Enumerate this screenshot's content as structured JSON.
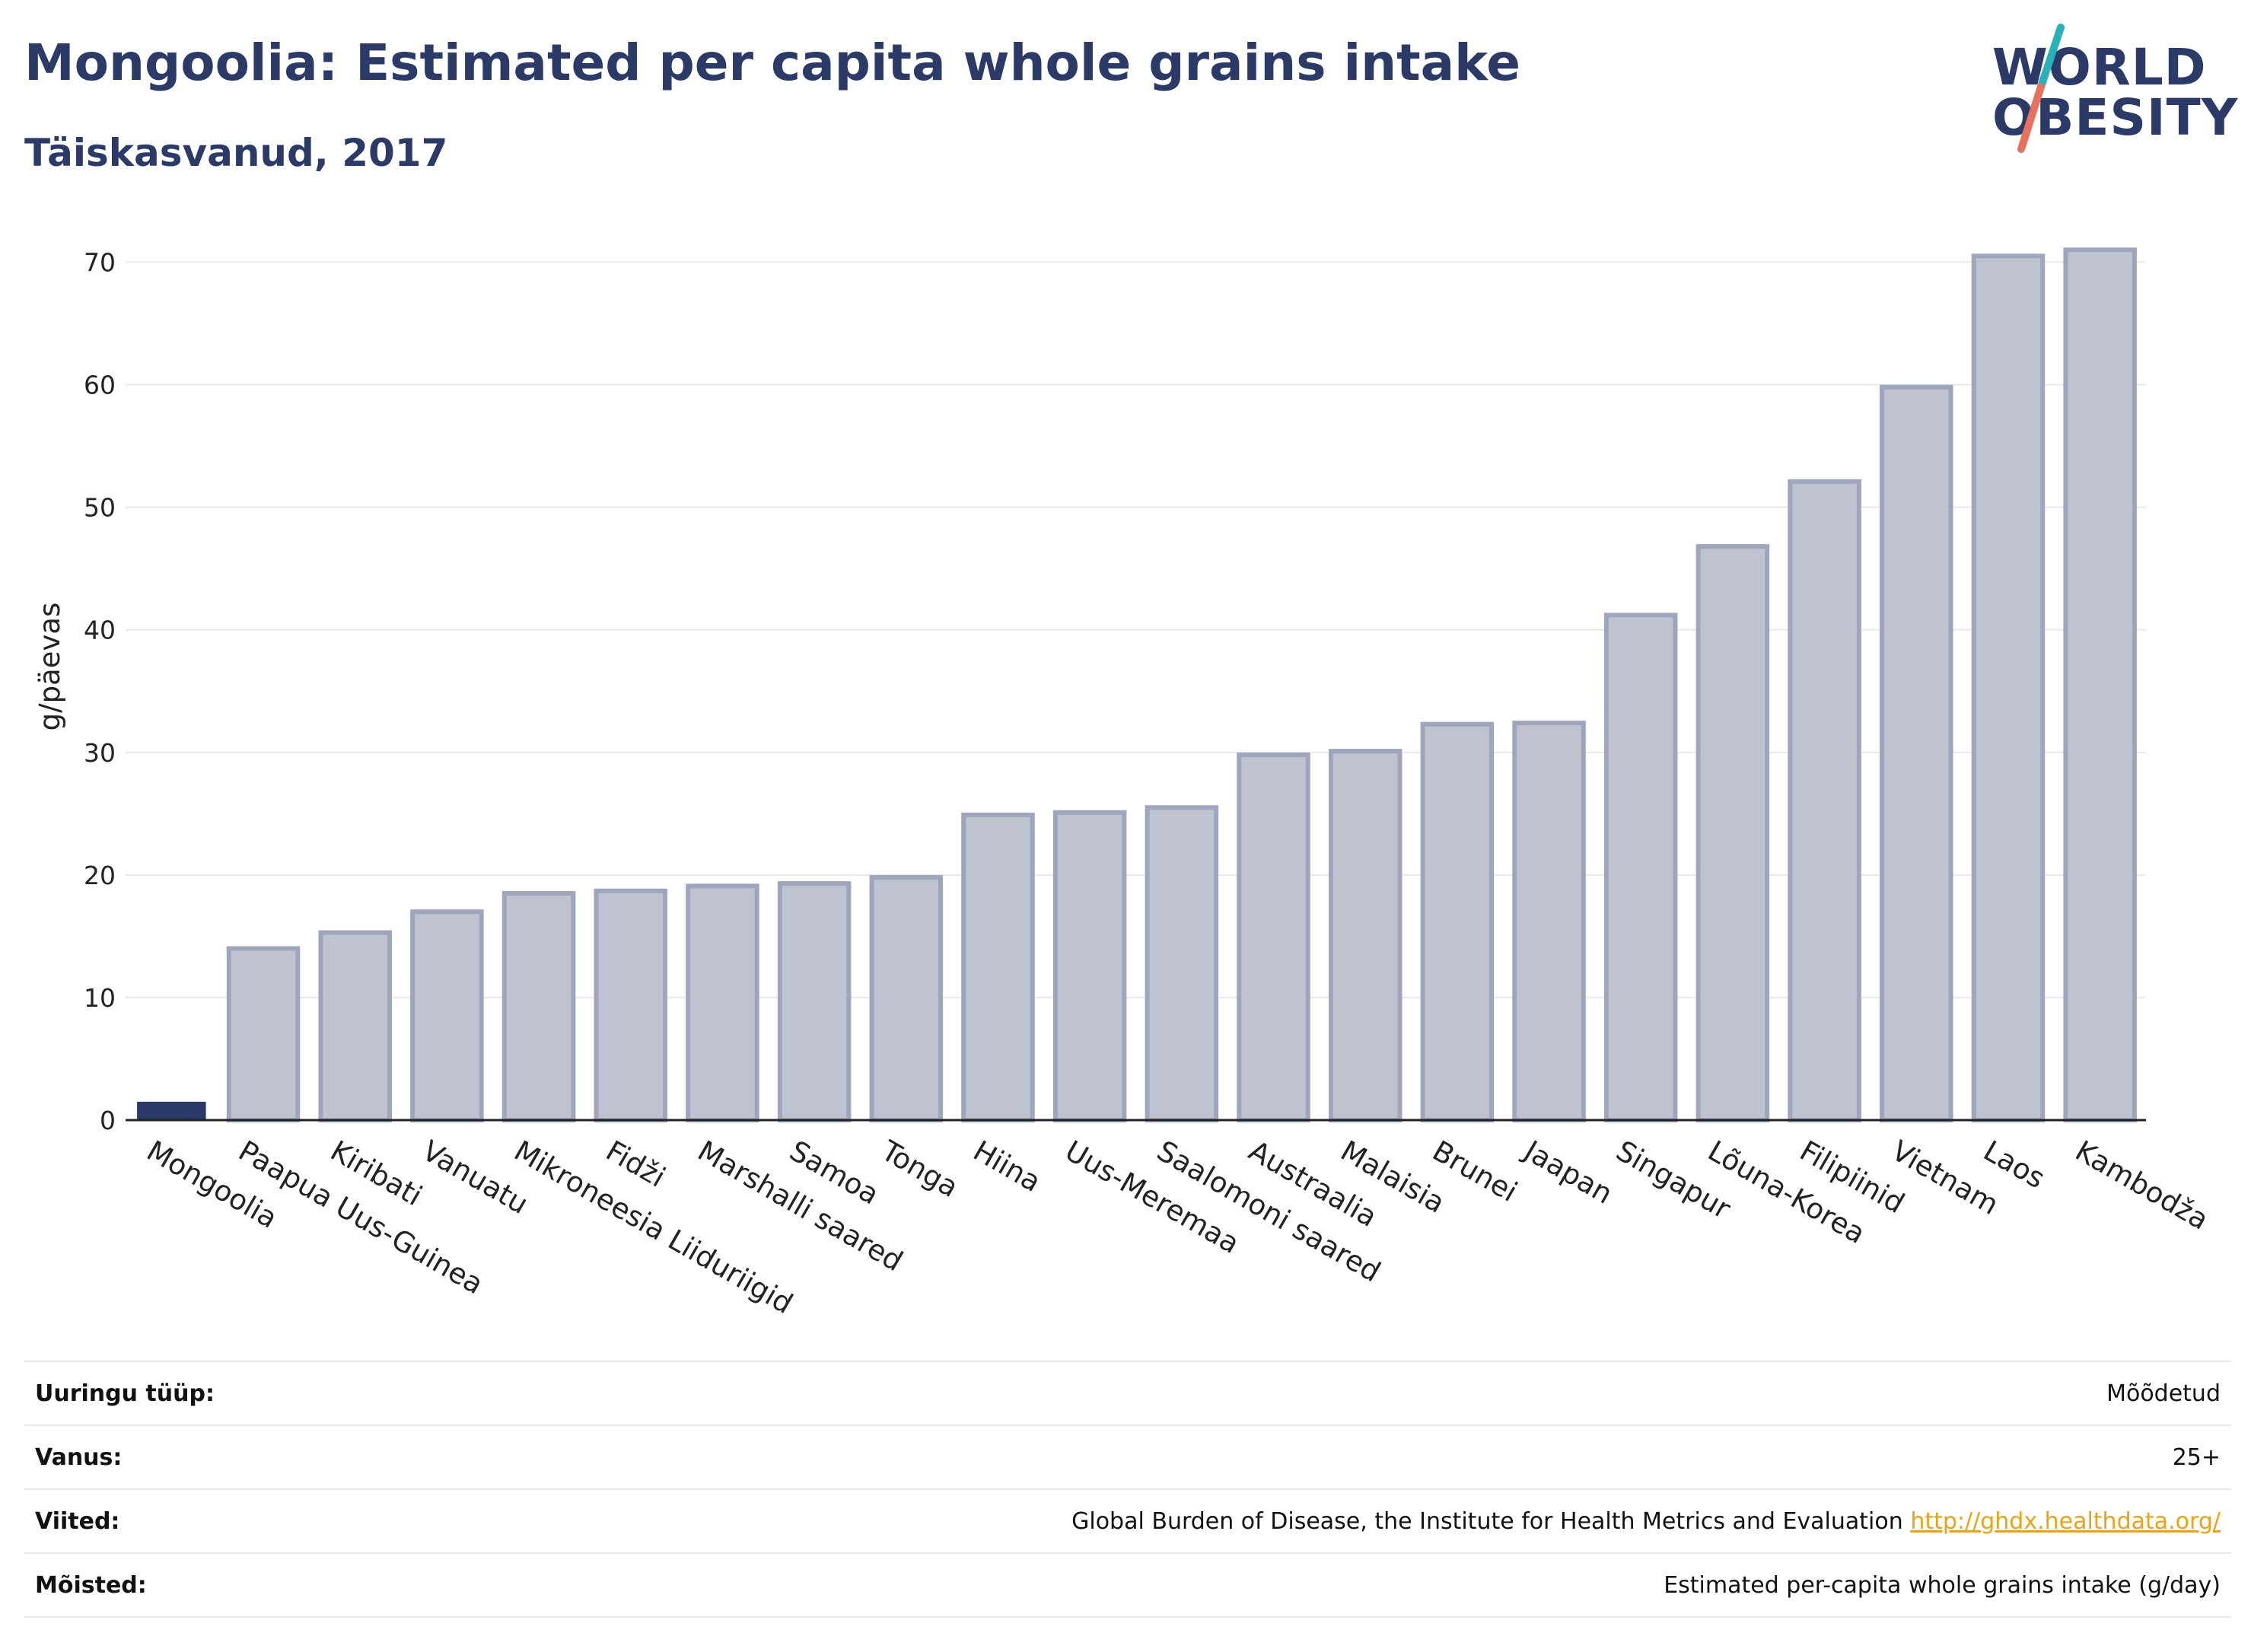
{
  "header": {
    "title": "Mongoolia: Estimated per capita whole grains intake",
    "subtitle": "Täiskasvanud, 2017"
  },
  "logo": {
    "line1": "WORLD",
    "line2": "OBESITY",
    "colors": {
      "text": "#2b3a67",
      "stroke_top": "#2ab0b8",
      "stroke_bottom": "#e8705f"
    }
  },
  "chart_data": {
    "type": "bar",
    "categories": [
      "Mongoolia",
      "Paapua Uus-Guinea",
      "Kiribati",
      "Vanuatu",
      "Mikroneesia Liiduriigid",
      "Fidži",
      "Marshalli saared",
      "Samoa",
      "Tonga",
      "Hiina",
      "Uus-Meremaa",
      "Saalomoni saared",
      "Austraalia",
      "Malaisia",
      "Brunei",
      "Jaapan",
      "Singapur",
      "Lõuna-Korea",
      "Filipiinid",
      "Vietnam",
      "Laos",
      "Kambodža"
    ],
    "values": [
      1.5,
      14.0,
      15.3,
      17.0,
      18.5,
      18.7,
      19.1,
      19.3,
      19.8,
      24.9,
      25.1,
      25.5,
      29.8,
      30.1,
      32.3,
      32.4,
      41.2,
      46.8,
      52.1,
      59.8,
      70.5,
      71.0
    ],
    "highlight_index": 0,
    "xlabel": "",
    "ylabel": "g/päevas",
    "ylim": [
      0,
      74
    ],
    "yticks": [
      0,
      10,
      20,
      30,
      40,
      50,
      60,
      70
    ],
    "grid": true,
    "colors": {
      "highlight": "#2b3a67",
      "bar_fill": "#bfc3d0",
      "bar_stroke": "#9fa5bc",
      "grid": "#e6e8ec",
      "axis": "#222222"
    }
  },
  "info": [
    {
      "label": "Uuringu tüüp:",
      "value": "Mõõdetud"
    },
    {
      "label": "Vanus:",
      "value": "25+"
    },
    {
      "label": "Viited:",
      "value": "Global Burden of Disease, the Institute for Health Metrics and Evaluation",
      "link": "http://ghdx.healthdata.org/"
    },
    {
      "label": "Mõisted:",
      "value": "Estimated per-capita whole grains intake (g/day)"
    }
  ]
}
